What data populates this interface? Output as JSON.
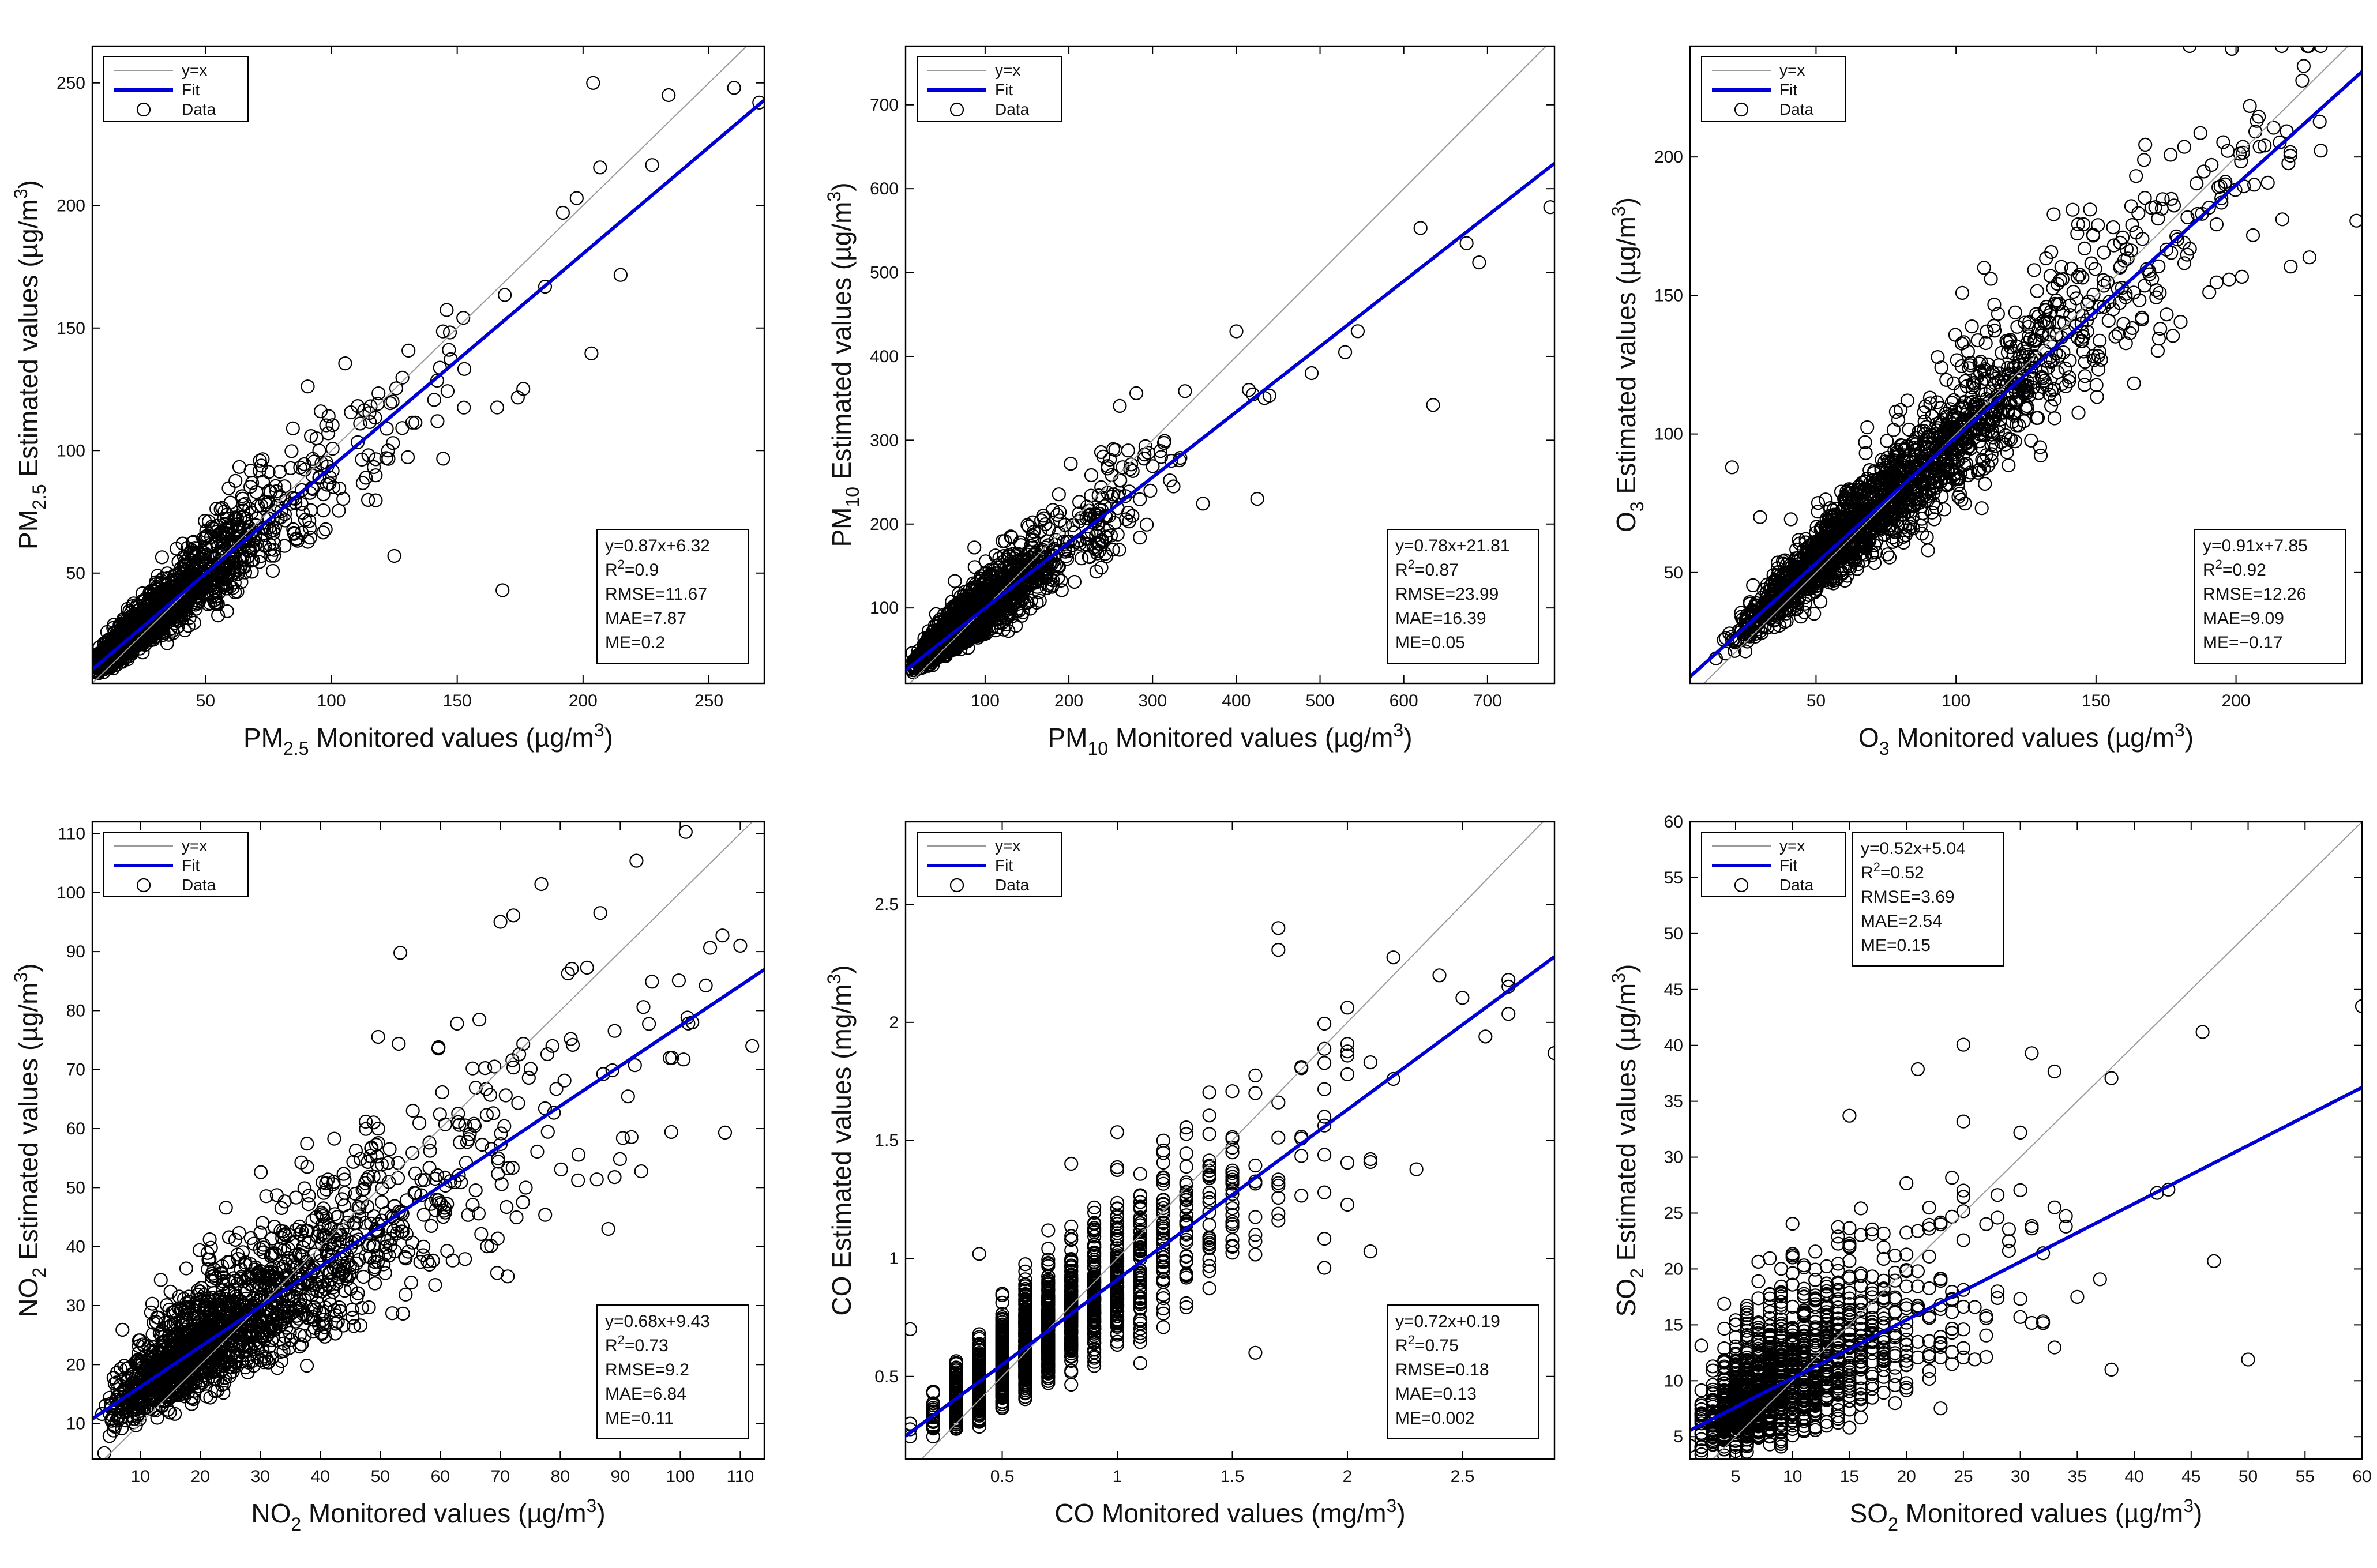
{
  "figure": {
    "legend_labels": [
      "y=x",
      "Fit",
      "Data"
    ],
    "colors": {
      "fit": "#0000d4",
      "identity": "#9a9a9a",
      "points": "#000000"
    }
  },
  "chart_data": [
    {
      "id": "pm25",
      "type": "scatter",
      "title": "",
      "xlabel": {
        "prefix": "PM",
        "sub": "2.5",
        "rest": " Monitored values (µg/m",
        "sup": "3",
        "suffix": ")"
      },
      "ylabel": {
        "prefix": "PM",
        "sub": "2.5",
        "rest": " Estimated values (µg/m",
        "sup": "3",
        "suffix": ")"
      },
      "xlim": [
        5,
        272
      ],
      "ylim": [
        5,
        265
      ],
      "xticks": [
        50,
        100,
        150,
        200,
        250
      ],
      "yticks": [
        50,
        100,
        150,
        200,
        250
      ],
      "fit": {
        "slope": 0.87,
        "intercept": 6.32
      },
      "stats": [
        {
          "base": "y=0.87x+6.32"
        },
        {
          "base": "R",
          "sup": "2",
          "tail": "=0.9"
        },
        {
          "base": "RMSE=11.67"
        },
        {
          "base": "MAE=7.87"
        },
        {
          "base": "ME=0.2"
        }
      ],
      "stats_position": "bottom-right",
      "legend_position": "top-left",
      "cloud": {
        "n": 1800,
        "noise_sd": 0.16,
        "lognormal_mu": 3.35,
        "lognormal_sigma": 0.75,
        "max_x": 268
      },
      "outliers": [
        [
          204,
          250
        ],
        [
          234,
          245
        ],
        [
          260,
          248
        ],
        [
          270,
          242
        ],
        [
          168,
          43
        ],
        [
          125,
          57
        ],
        [
          192,
          197
        ]
      ]
    },
    {
      "id": "pm10",
      "type": "scatter",
      "title": "",
      "xlabel": {
        "prefix": "PM",
        "sub": "10",
        "rest": " Monitored values (µg/m",
        "sup": "3",
        "suffix": ")"
      },
      "ylabel": {
        "prefix": "PM",
        "sub": "10",
        "rest": " Estimated values (µg/m",
        "sup": "3",
        "suffix": ")"
      },
      "xlim": [
        5,
        780
      ],
      "ylim": [
        10,
        770
      ],
      "xticks": [
        100,
        200,
        300,
        400,
        500,
        600,
        700
      ],
      "yticks": [
        100,
        200,
        300,
        400,
        500,
        600,
        700
      ],
      "fit": {
        "slope": 0.78,
        "intercept": 21.81
      },
      "stats": [
        {
          "base": "y=0.78x+21.81"
        },
        {
          "base": "R",
          "sup": "2",
          "tail": "=0.87"
        },
        {
          "base": "RMSE=23.99"
        },
        {
          "base": "MAE=16.39"
        },
        {
          "base": "ME=0.05"
        }
      ],
      "stats_position": "bottom-right",
      "legend_position": "top-left",
      "cloud": {
        "n": 1800,
        "noise_sd": 0.17,
        "lognormal_mu": 4.35,
        "lognormal_sigma": 0.6,
        "max_x": 450
      },
      "outliers": [
        [
          775,
          578
        ],
        [
          675,
          535
        ],
        [
          690,
          512
        ],
        [
          620,
          553
        ],
        [
          635,
          342
        ],
        [
          545,
          430
        ],
        [
          530,
          405
        ],
        [
          490,
          380
        ],
        [
          425,
          230
        ],
        [
          415,
          360
        ]
      ]
    },
    {
      "id": "o3",
      "type": "scatter",
      "title": "",
      "xlabel": {
        "prefix": "O",
        "sub": "3",
        "rest": " Monitored values (µg/m",
        "sup": "3",
        "suffix": ")"
      },
      "ylabel": {
        "prefix": "O",
        "sub": "3",
        "rest": " Estimated values (µg/m",
        "sup": "3",
        "suffix": ")"
      },
      "xlim": [
        5,
        245
      ],
      "ylim": [
        10,
        240
      ],
      "xticks": [
        50,
        100,
        150,
        200
      ],
      "yticks": [
        50,
        100,
        150,
        200
      ],
      "fit": {
        "slope": 0.91,
        "intercept": 7.85
      },
      "stats": [
        {
          "base": "y=0.91x+7.85"
        },
        {
          "base": "R",
          "sup": "2",
          "tail": "=0.92"
        },
        {
          "base": "RMSE=12.26"
        },
        {
          "base": "MAE=9.09"
        },
        {
          "base": "ME=−0.17"
        }
      ],
      "stats_position": "bottom-right",
      "legend_position": "top-left",
      "cloud": {
        "n": 1900,
        "noise_sd": 0.12,
        "lognormal_mu": 4.3,
        "lognormal_sigma": 0.5,
        "max_x": 232
      },
      "outliers": [
        [
          243,
          177
        ],
        [
          20,
          88
        ],
        [
          30,
          70
        ],
        [
          90,
          58
        ],
        [
          110,
          160
        ]
      ]
    },
    {
      "id": "no2",
      "type": "scatter",
      "title": "",
      "xlabel": {
        "prefix": "NO",
        "sub": "2",
        "rest": " Monitored values (µg/m",
        "sup": "3",
        "suffix": ")"
      },
      "ylabel": {
        "prefix": "NO",
        "sub": "2",
        "rest": " Estimated values (µg/m",
        "sup": "3",
        "suffix": ")"
      },
      "xlim": [
        2,
        114
      ],
      "ylim": [
        4,
        112
      ],
      "xticks": [
        10,
        20,
        30,
        40,
        50,
        60,
        70,
        80,
        90,
        100,
        110
      ],
      "yticks": [
        10,
        20,
        30,
        40,
        50,
        60,
        70,
        80,
        90,
        100,
        110
      ],
      "fit": {
        "slope": 0.68,
        "intercept": 9.43
      },
      "stats": [
        {
          "base": "y=0.68x+9.43"
        },
        {
          "base": "R",
          "sup": "2",
          "tail": "=0.73"
        },
        {
          "base": "RMSE=9.2"
        },
        {
          "base": "MAE=6.84"
        },
        {
          "base": "ME=0.11"
        }
      ],
      "stats_position": "bottom-right",
      "legend_position": "top-left",
      "cloud": {
        "n": 1700,
        "noise_sd": 0.2,
        "lognormal_mu": 3.2,
        "lognormal_sigma": 0.6,
        "max_x": 108
      },
      "outliers": [
        [
          110,
          91
        ],
        [
          112,
          74
        ],
        [
          102,
          78
        ],
        [
          4,
          5
        ],
        [
          88,
          43
        ]
      ]
    },
    {
      "id": "co",
      "type": "scatter",
      "title": "",
      "xlabel": {
        "prefix": "CO Monitored values (mg/m",
        "sub": "",
        "rest": "",
        "sup": "3",
        "suffix": ")"
      },
      "ylabel": {
        "prefix": "CO Estimated values (mg/m",
        "sub": "",
        "rest": "",
        "sup": "3",
        "suffix": ")"
      },
      "xlim": [
        0.08,
        2.9
      ],
      "ylim": [
        0.15,
        2.85
      ],
      "xticks": [
        0.5,
        1,
        1.5,
        2,
        2.5
      ],
      "yticks": [
        0.5,
        1,
        1.5,
        2,
        2.5
      ],
      "fit": {
        "slope": 0.72,
        "intercept": 0.19
      },
      "stats": [
        {
          "base": "y=0.72x+0.19"
        },
        {
          "base": "R",
          "sup": "2",
          "tail": "=0.75"
        },
        {
          "base": "RMSE=0.18"
        },
        {
          "base": "MAE=0.13"
        },
        {
          "base": "ME=0.002"
        }
      ],
      "stats_position": "bottom-right",
      "legend_position": "top-left",
      "cloud": {
        "n": 1600,
        "noise_sd": 0.17,
        "lognormal_mu": -0.4,
        "lognormal_sigma": 0.45,
        "max_x": 2.9,
        "discrete_step": 0.1
      },
      "outliers": [
        [
          0.1,
          0.7
        ],
        [
          0.1,
          0.3
        ],
        [
          2.7,
          2.18
        ],
        [
          2.9,
          1.87
        ],
        [
          1.9,
          0.96
        ],
        [
          1.6,
          0.6
        ]
      ]
    },
    {
      "id": "so2",
      "type": "scatter",
      "title": "",
      "xlabel": {
        "prefix": "SO",
        "sub": "2",
        "rest": " Monitored values (µg/m",
        "sup": "3",
        "suffix": ")"
      },
      "ylabel": {
        "prefix": "SO",
        "sub": "2",
        "rest": " Estimated values (µg/m",
        "sup": "3",
        "suffix": ")"
      },
      "xlim": [
        1,
        60
      ],
      "ylim": [
        3,
        60
      ],
      "xticks": [
        5,
        10,
        15,
        20,
        25,
        30,
        35,
        40,
        45,
        50,
        55,
        60
      ],
      "yticks": [
        5,
        10,
        15,
        20,
        25,
        30,
        35,
        40,
        45,
        50,
        55,
        60
      ],
      "fit": {
        "slope": 0.52,
        "intercept": 5.04
      },
      "stats": [
        {
          "base": "y=0.52x+5.04"
        },
        {
          "base": "R",
          "sup": "2",
          "tail": "=0.52"
        },
        {
          "base": "RMSE=3.69"
        },
        {
          "base": "MAE=2.54"
        },
        {
          "base": "ME=0.15"
        }
      ],
      "stats_position": "top-left",
      "legend_position": "top-left",
      "cloud": {
        "n": 1500,
        "noise_sd": 0.3,
        "lognormal_mu": 2.2,
        "lognormal_sigma": 0.55,
        "max_x": 40,
        "discrete_step": 1
      },
      "outliers": [
        [
          60,
          43.5
        ],
        [
          46,
          41.2
        ],
        [
          31,
          39.3
        ],
        [
          30,
          32.2
        ],
        [
          47,
          20.7
        ],
        [
          50,
          11.9
        ],
        [
          42,
          26.8
        ],
        [
          43,
          27.1
        ],
        [
          38,
          11
        ],
        [
          35,
          17.5
        ],
        [
          34,
          23.8
        ]
      ]
    }
  ]
}
